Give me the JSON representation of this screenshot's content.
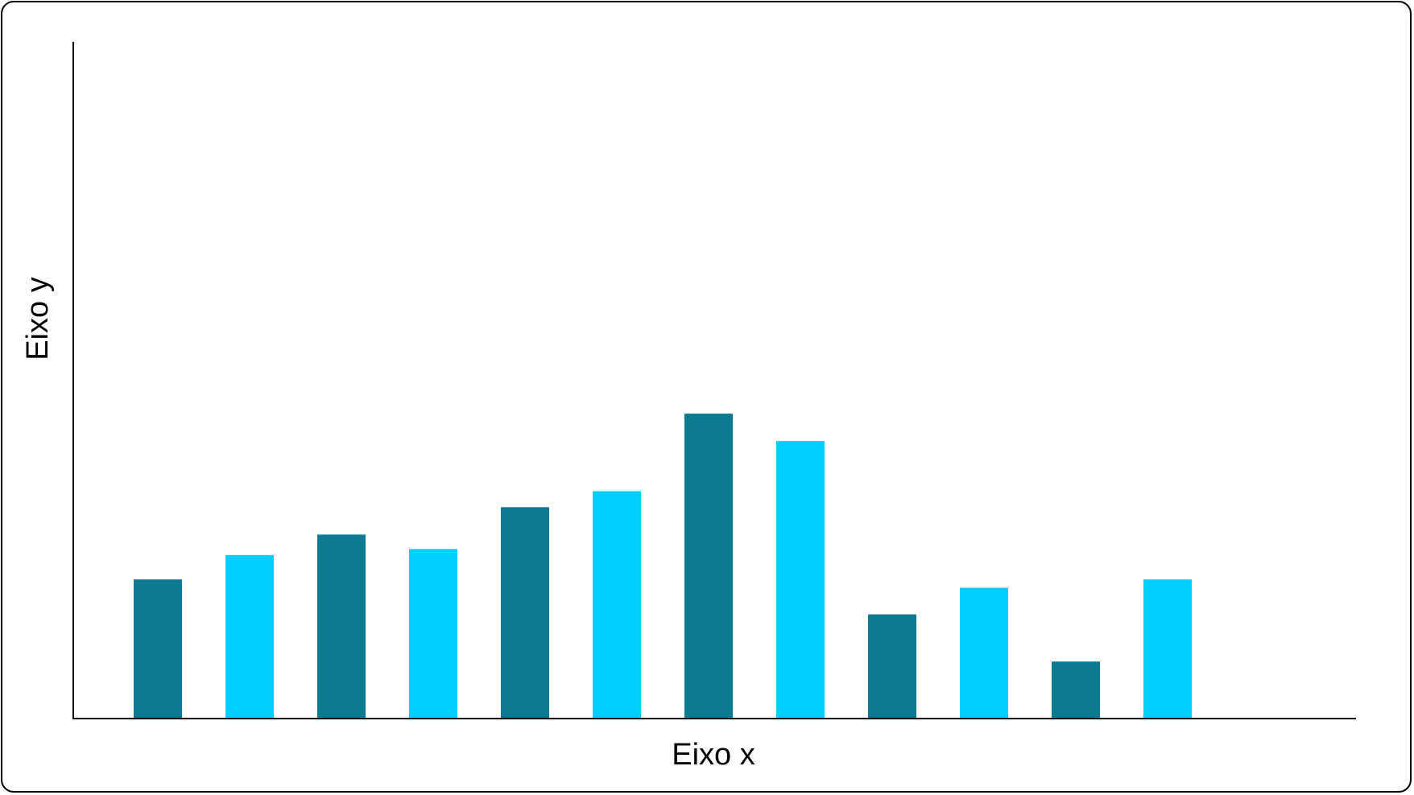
{
  "chart_data": {
    "type": "bar",
    "title": "",
    "xlabel": "Eixo x",
    "ylabel": "Eixo y",
    "categories": [
      "",
      "",
      "",
      "",
      "",
      "",
      "",
      "",
      "",
      "",
      "",
      ""
    ],
    "values": [
      18.3,
      21.5,
      24.2,
      22.3,
      27.8,
      29.9,
      40.1,
      36.5,
      13.7,
      17.2,
      7.5,
      18.3
    ],
    "ylim": [
      0,
      89
    ],
    "grid": false,
    "legend": "none",
    "colors": {
      "dark": "#0C7A91",
      "light": "#00CFFF",
      "axis": "#000000"
    }
  }
}
